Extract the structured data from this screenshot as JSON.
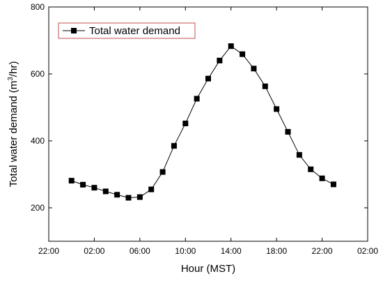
{
  "chart_data": {
    "type": "line",
    "title": "",
    "xlabel": "Hour (MST)",
    "ylabel": "Total water demand (m3/hr)",
    "ylabel_parts": {
      "pre": "Total water demand (m",
      "sup": "3",
      "post": "/hr)"
    },
    "x_unit": "hours since 00:00 (tick labels wrap at 24:00)",
    "xlim": [
      -2,
      26
    ],
    "ylim": [
      100,
      800
    ],
    "x_ticks": [
      {
        "value": -2,
        "label": "22:00"
      },
      {
        "value": 2,
        "label": "02:00"
      },
      {
        "value": 6,
        "label": "06:00"
      },
      {
        "value": 10,
        "label": "10:00"
      },
      {
        "value": 14,
        "label": "14:00"
      },
      {
        "value": 18,
        "label": "18:00"
      },
      {
        "value": 22,
        "label": "22:00"
      },
      {
        "value": 26,
        "label": "02:00"
      }
    ],
    "y_ticks": [
      {
        "value": 200,
        "label": "200"
      },
      {
        "value": 400,
        "label": "400"
      },
      {
        "value": 600,
        "label": "600"
      },
      {
        "value": 800,
        "label": "800"
      }
    ],
    "grid": false,
    "legend_position": "top-left",
    "series": [
      {
        "name": "Total water demand",
        "marker": "square",
        "marker_color": "#000000",
        "line_color": "#000000",
        "x": [
          0,
          1,
          2,
          3,
          4,
          5,
          6,
          7,
          8,
          9,
          10,
          11,
          12,
          13,
          14,
          15,
          16,
          17,
          18,
          19,
          20,
          21,
          22,
          23
        ],
        "y": [
          281,
          269,
          260,
          249,
          239,
          230,
          232,
          255,
          307,
          385,
          452,
          526,
          586,
          640,
          683,
          659,
          616,
          563,
          495,
          427,
          358,
          315,
          288,
          270
        ]
      }
    ]
  },
  "legend_border_color": "#c0504d"
}
